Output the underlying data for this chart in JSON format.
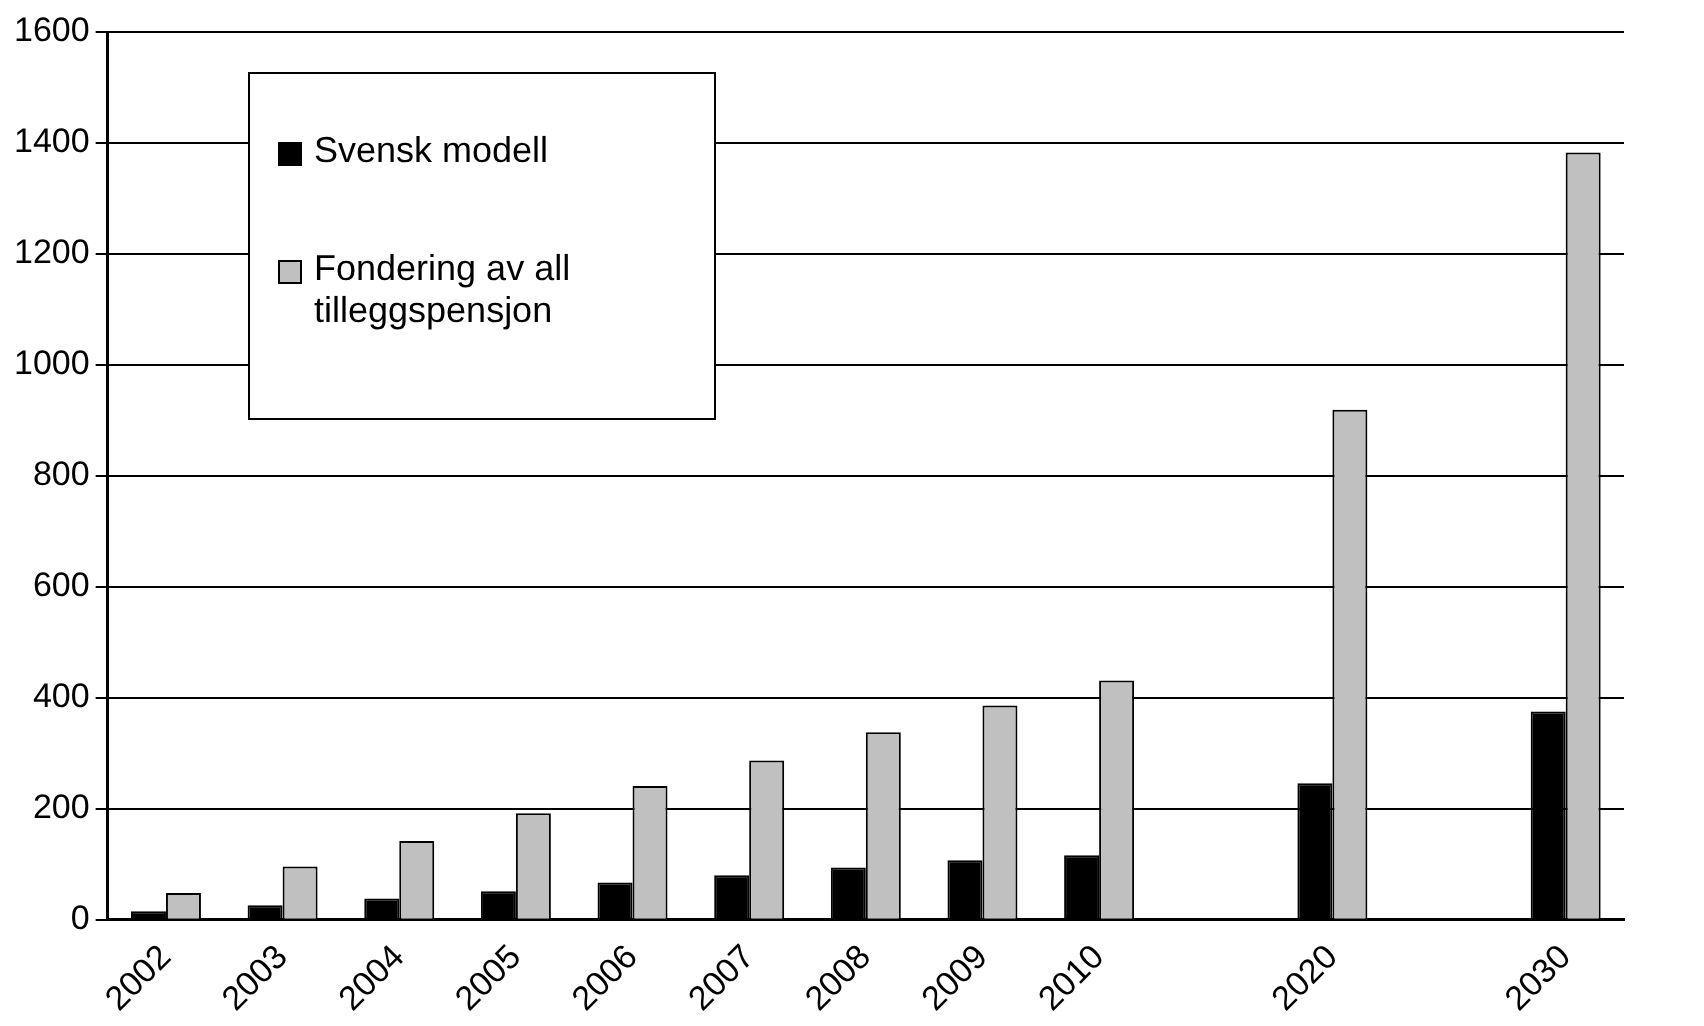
{
  "chart_data": {
    "type": "bar",
    "categories": [
      "2002",
      "2003",
      "2004",
      "2005",
      "2006",
      "2007",
      "2008",
      "2009",
      "2010",
      null,
      "2020",
      null,
      "2030"
    ],
    "series": [
      {
        "name": "Svensk modell",
        "color": "#000000",
        "values": [
          15,
          26,
          38,
          51,
          67,
          80,
          94,
          107,
          116,
          null,
          246,
          null,
          375
        ]
      },
      {
        "name": "Fondering av all tilleggspensjon",
        "color": "#c0c0c0",
        "values": [
          48,
          96,
          142,
          192,
          241,
          287,
          338,
          386,
          431,
          null,
          919,
          null,
          1383
        ]
      }
    ],
    "ylim": [
      0,
      1600
    ],
    "yticks": [
      0,
      200,
      400,
      600,
      800,
      1000,
      1200,
      1400,
      1600
    ],
    "grid": "y",
    "legend": "top left"
  }
}
